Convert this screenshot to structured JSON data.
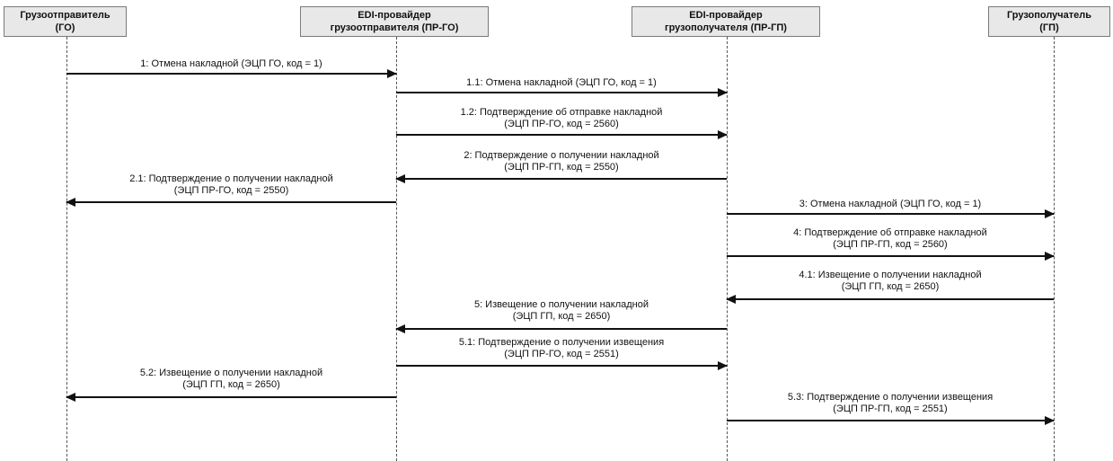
{
  "participants": [
    {
      "name": "Грузоотправитель",
      "abbr": "(ГО)"
    },
    {
      "name": "EDI-провайдер",
      "abbr": "грузоотправителя (ПР-ГО)"
    },
    {
      "name": "EDI-провайдер",
      "abbr": "грузополучателя (ПР-ГП)"
    },
    {
      "name": "Грузополучатель",
      "abbr": "(ГП)"
    }
  ],
  "messages": [
    {
      "from": 0,
      "to": 1,
      "line1": "1: Отмена накладной (ЭЦП ГО, код = 1)",
      "line2": ""
    },
    {
      "from": 1,
      "to": 2,
      "line1": "1.1: Отмена накладной (ЭЦП ГО, код = 1)",
      "line2": ""
    },
    {
      "from": 1,
      "to": 2,
      "line1": "1.2: Подтверждение об отправке накладной",
      "line2": "(ЭЦП ПР-ГО, код = 2560)"
    },
    {
      "from": 2,
      "to": 1,
      "line1": "2: Подтверждение о получении накладной",
      "line2": "(ЭЦП ПР-ГП, код = 2550)"
    },
    {
      "from": 1,
      "to": 0,
      "line1": "2.1: Подтверждение о получении накладной",
      "line2": "(ЭЦП ПР-ГО, код = 2550)"
    },
    {
      "from": 2,
      "to": 3,
      "line1": "3: Отмена накладной (ЭЦП ГО, код = 1)",
      "line2": ""
    },
    {
      "from": 2,
      "to": 3,
      "line1": "4: Подтверждение об отправке накладной",
      "line2": "(ЭЦП ПР-ГП, код = 2560)"
    },
    {
      "from": 3,
      "to": 2,
      "line1": "4.1: Извещение о получении накладной",
      "line2": "(ЭЦП ГП, код = 2650)"
    },
    {
      "from": 2,
      "to": 1,
      "line1": "5: Извещение о получении накладной",
      "line2": "(ЭЦП ГП, код = 2650)"
    },
    {
      "from": 1,
      "to": 2,
      "line1": "5.1: Подтверждение о получении извещения",
      "line2": "(ЭЦП ПР-ГО, код = 2551)"
    },
    {
      "from": 1,
      "to": 0,
      "line1": "5.2: Извещение о получении накладной",
      "line2": "(ЭЦП ГП, код = 2650)"
    },
    {
      "from": 2,
      "to": 3,
      "line1": "5.3: Подтверждение о получении извещения",
      "line2": "(ЭЦП ПР-ГП, код = 2551)"
    }
  ]
}
